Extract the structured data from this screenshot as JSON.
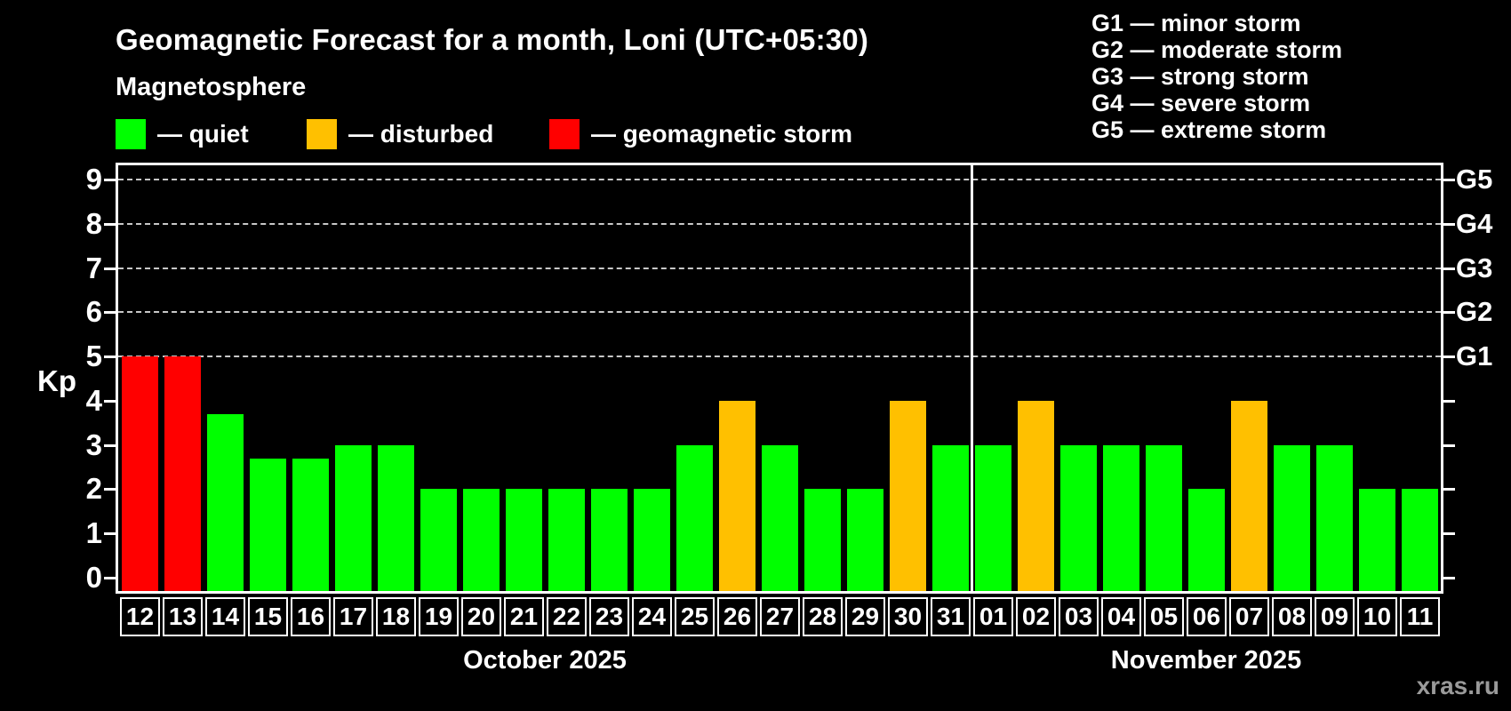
{
  "watermark": "xras.ru",
  "chart_data": {
    "type": "bar",
    "title": "Geomagnetic Forecast for a month, Loni (UTC+05:30)",
    "subtitle": "Magnetosphere",
    "ylabel": "Kp",
    "ylim": [
      0,
      9
    ],
    "yticks": [
      0,
      1,
      2,
      3,
      4,
      5,
      6,
      7,
      8,
      9
    ],
    "grid": "dashed horizontal gridlines at Kp 5 through 9 only",
    "legend_position": "top-left",
    "legend": [
      {
        "label": "— quiet",
        "level": "quiet",
        "color": "#00ff00",
        "x": 130
      },
      {
        "label": "— disturbed",
        "level": "disturbed",
        "color": "#ffc000",
        "x": 345
      },
      {
        "label": "— geomagnetic storm",
        "level": "storm",
        "color": "#ff0000",
        "x": 618
      }
    ],
    "g_legend": [
      "G1 — minor storm",
      "G2 — moderate storm",
      "G3 — strong storm",
      "G4 — severe storm",
      "G5 — extreme storm"
    ],
    "right_axis": [
      {
        "kp": 5,
        "label": "G1"
      },
      {
        "kp": 6,
        "label": "G2"
      },
      {
        "kp": 7,
        "label": "G3"
      },
      {
        "kp": 8,
        "label": "G4"
      },
      {
        "kp": 9,
        "label": "G5"
      }
    ],
    "level_colors": {
      "quiet": "#00ff00",
      "disturbed": "#ffc000",
      "storm": "#ff0000"
    },
    "months": [
      {
        "label": "October 2025",
        "days": 20
      },
      {
        "label": "November 2025",
        "days": 11
      }
    ],
    "bars": [
      {
        "day": "12",
        "kp": 5.0,
        "level": "storm"
      },
      {
        "day": "13",
        "kp": 5.0,
        "level": "storm"
      },
      {
        "day": "14",
        "kp": 3.7,
        "level": "quiet"
      },
      {
        "day": "15",
        "kp": 2.7,
        "level": "quiet"
      },
      {
        "day": "16",
        "kp": 2.7,
        "level": "quiet"
      },
      {
        "day": "17",
        "kp": 3.0,
        "level": "quiet"
      },
      {
        "day": "18",
        "kp": 3.0,
        "level": "quiet"
      },
      {
        "day": "19",
        "kp": 2.0,
        "level": "quiet"
      },
      {
        "day": "20",
        "kp": 2.0,
        "level": "quiet"
      },
      {
        "day": "21",
        "kp": 2.0,
        "level": "quiet"
      },
      {
        "day": "22",
        "kp": 2.0,
        "level": "quiet"
      },
      {
        "day": "23",
        "kp": 2.0,
        "level": "quiet"
      },
      {
        "day": "24",
        "kp": 2.0,
        "level": "quiet"
      },
      {
        "day": "25",
        "kp": 3.0,
        "level": "quiet"
      },
      {
        "day": "26",
        "kp": 4.0,
        "level": "disturbed"
      },
      {
        "day": "27",
        "kp": 3.0,
        "level": "quiet"
      },
      {
        "day": "28",
        "kp": 2.0,
        "level": "quiet"
      },
      {
        "day": "29",
        "kp": 2.0,
        "level": "quiet"
      },
      {
        "day": "30",
        "kp": 4.0,
        "level": "disturbed"
      },
      {
        "day": "31",
        "kp": 3.0,
        "level": "quiet"
      },
      {
        "day": "01",
        "kp": 3.0,
        "level": "quiet"
      },
      {
        "day": "02",
        "kp": 4.0,
        "level": "disturbed"
      },
      {
        "day": "03",
        "kp": 3.0,
        "level": "quiet"
      },
      {
        "day": "04",
        "kp": 3.0,
        "level": "quiet"
      },
      {
        "day": "05",
        "kp": 3.0,
        "level": "quiet"
      },
      {
        "day": "06",
        "kp": 2.0,
        "level": "quiet"
      },
      {
        "day": "07",
        "kp": 4.0,
        "level": "disturbed"
      },
      {
        "day": "08",
        "kp": 3.0,
        "level": "quiet"
      },
      {
        "day": "09",
        "kp": 3.0,
        "level": "quiet"
      },
      {
        "day": "10",
        "kp": 2.0,
        "level": "quiet"
      },
      {
        "day": "11",
        "kp": 2.0,
        "level": "quiet"
      }
    ]
  }
}
